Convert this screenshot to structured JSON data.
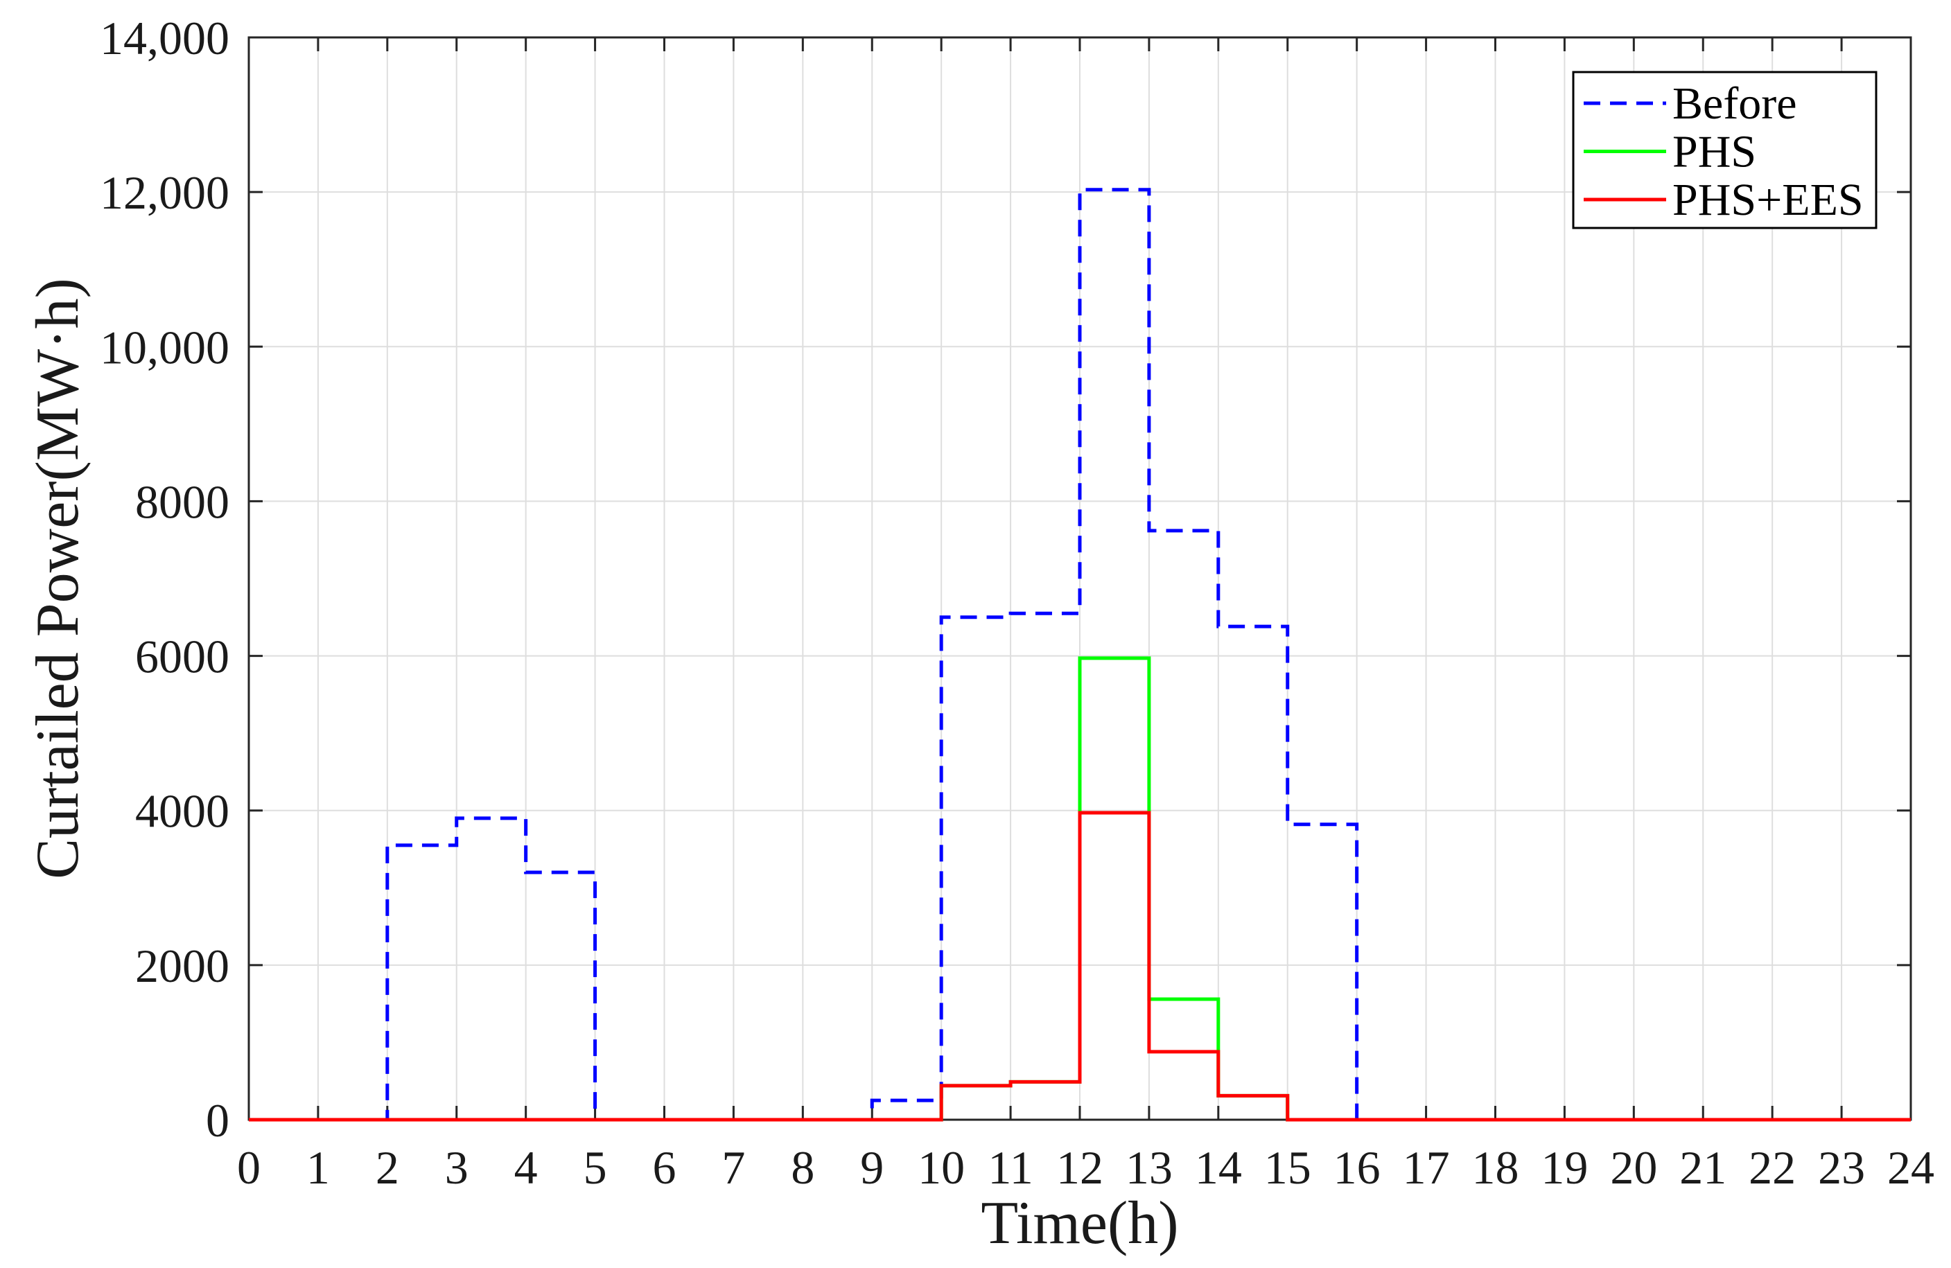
{
  "chart_data": {
    "type": "line",
    "drawstyle": "steps-post",
    "xlabel": "Time(h)",
    "ylabel": "Curtailed Power(MW·h)",
    "xlim": [
      0,
      24
    ],
    "ylim": [
      0,
      14000
    ],
    "xticks": [
      0,
      1,
      2,
      3,
      4,
      5,
      6,
      7,
      8,
      9,
      10,
      11,
      12,
      13,
      14,
      15,
      16,
      17,
      18,
      19,
      20,
      21,
      22,
      23,
      24
    ],
    "xticklabels": [
      "0",
      "1",
      "2",
      "3",
      "4",
      "5",
      "6",
      "7",
      "8",
      "9",
      "10",
      "11",
      "12",
      "13",
      "14",
      "15",
      "16",
      "17",
      "18",
      "19",
      "20",
      "21",
      "22",
      "23",
      "24"
    ],
    "yticks": [
      0,
      2000,
      4000,
      6000,
      8000,
      10000,
      12000,
      14000
    ],
    "yticklabels": [
      "0",
      "2000",
      "4000",
      "6000",
      "8000",
      "10,000",
      "12,000",
      "14,000"
    ],
    "grid": true,
    "legend": "top-right",
    "x": [
      0,
      1,
      2,
      3,
      4,
      5,
      6,
      7,
      8,
      9,
      10,
      11,
      12,
      13,
      14,
      15,
      16,
      17,
      18,
      19,
      20,
      21,
      22,
      23,
      24
    ],
    "series": [
      {
        "name": "Before",
        "color": "#0000FF",
        "line_style": "dashed",
        "values": [
          0,
          0,
          3550,
          3900,
          3200,
          0,
          0,
          0,
          0,
          250,
          6500,
          6550,
          12030,
          7620,
          6380,
          3820,
          0,
          0,
          0,
          0,
          0,
          0,
          0,
          0,
          0
        ]
      },
      {
        "name": "PHS",
        "color": "#00FF00",
        "line_style": "solid",
        "values": [
          0,
          0,
          0,
          0,
          0,
          0,
          0,
          0,
          0,
          0,
          440,
          490,
          5970,
          1560,
          310,
          0,
          0,
          0,
          0,
          0,
          0,
          0,
          0,
          0,
          0
        ]
      },
      {
        "name": "PHS+EES",
        "color": "#FF0000",
        "line_style": "solid",
        "values": [
          0,
          0,
          0,
          0,
          0,
          0,
          0,
          0,
          0,
          0,
          440,
          490,
          3970,
          880,
          310,
          0,
          0,
          0,
          0,
          0,
          0,
          0,
          0,
          0,
          0
        ]
      }
    ]
  }
}
